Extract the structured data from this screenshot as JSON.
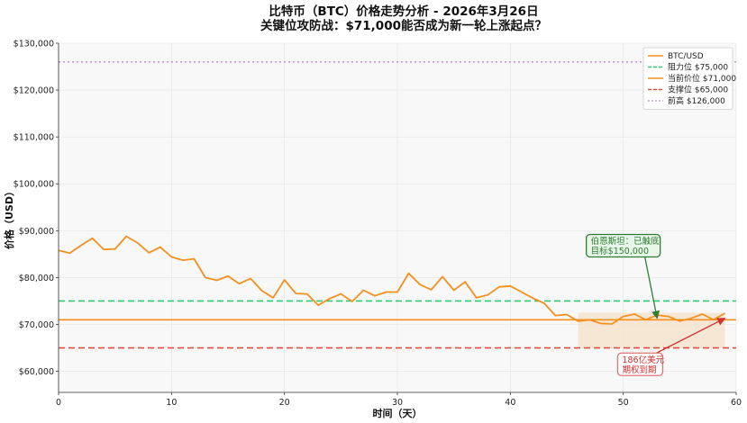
{
  "chart_data": {
    "type": "line",
    "title_line1": "比特币（BTC）价格走势分析 - 2026年3月26日",
    "title_line2": "关键位攻防战：$71,000能否成为新一轮上涨起点？",
    "xlabel": "时间（天）",
    "ylabel": "价格（USD）",
    "xlim": [
      0,
      60
    ],
    "ylim": [
      55500,
      130000
    ],
    "x_ticks": [
      0,
      10,
      20,
      30,
      40,
      50,
      60
    ],
    "x_tick_labels": [
      "0",
      "10",
      "20",
      "30",
      "40",
      "50",
      "60"
    ],
    "y_ticks": [
      60000,
      70000,
      80000,
      90000,
      100000,
      110000,
      120000,
      130000
    ],
    "y_tick_labels": [
      "$60,000",
      "$70,000",
      "$80,000",
      "$90,000",
      "$100,000",
      "$110,000",
      "$120,000",
      "$130,000"
    ],
    "grid": true,
    "legend_position": "top-right",
    "series": [
      {
        "name": "BTC/USD",
        "color": "#f5901e",
        "x": [
          0,
          1,
          2,
          3,
          4,
          5,
          6,
          7,
          8,
          9,
          10,
          11,
          12,
          13,
          14,
          15,
          16,
          17,
          18,
          19,
          20,
          21,
          22,
          23,
          24,
          25,
          26,
          27,
          28,
          29,
          30,
          31,
          32,
          33,
          34,
          35,
          36,
          37,
          38,
          39,
          40,
          41,
          42,
          43,
          44,
          45,
          46,
          47,
          48,
          49,
          50,
          51,
          52,
          53,
          54,
          55,
          56,
          57,
          58,
          59
        ],
        "values": [
          85800,
          85200,
          86900,
          88400,
          86000,
          86100,
          88800,
          87400,
          85300,
          86500,
          84400,
          83700,
          84000,
          80000,
          79400,
          80300,
          78700,
          79800,
          77200,
          75700,
          79500,
          76600,
          76500,
          74100,
          75500,
          76500,
          74900,
          77300,
          76100,
          76900,
          76900,
          80900,
          78500,
          77400,
          80200,
          77300,
          79100,
          75700,
          76300,
          78000,
          78200,
          76900,
          75600,
          74500,
          71900,
          72100,
          70700,
          71000,
          70200,
          70100,
          71700,
          72200,
          71000,
          72000,
          71700,
          70700,
          71300,
          72200,
          71000,
          72400
        ]
      }
    ],
    "reference_lines": [
      {
        "name": "阻力位 $75,000",
        "value": 75000,
        "color": "#2ecc71",
        "style": "dashed"
      },
      {
        "name": "当前价位 $71,000",
        "value": 71000,
        "color": "#f5901e",
        "style": "solid"
      },
      {
        "name": "支撑位 $65,000",
        "value": 65000,
        "color": "#e74c3c",
        "style": "dashed"
      },
      {
        "name": "前高 $126,000",
        "value": 126000,
        "color": "#c39bd3",
        "style": "dotted"
      }
    ],
    "shaded_region": {
      "x_range": [
        46,
        59
      ],
      "y_range": [
        65000,
        72500
      ],
      "color": "#f5e0c8"
    },
    "annotations": [
      {
        "text_line1": "伯恩斯坦：已触底",
        "text_line2": "目标$150,000",
        "point": [
          53,
          71300
        ],
        "text_at": [
          50,
          86800
        ],
        "color": "#2e7d32",
        "bg": "#e8f5e9",
        "border": "#2e7d32"
      },
      {
        "text_line1": "186亿美元",
        "text_line2": "期权到期",
        "point": [
          59,
          71300
        ],
        "text_at": [
          51.5,
          61500
        ],
        "color": "#d32f2f",
        "bg": "#ffffff",
        "border": "#e57373"
      }
    ]
  }
}
